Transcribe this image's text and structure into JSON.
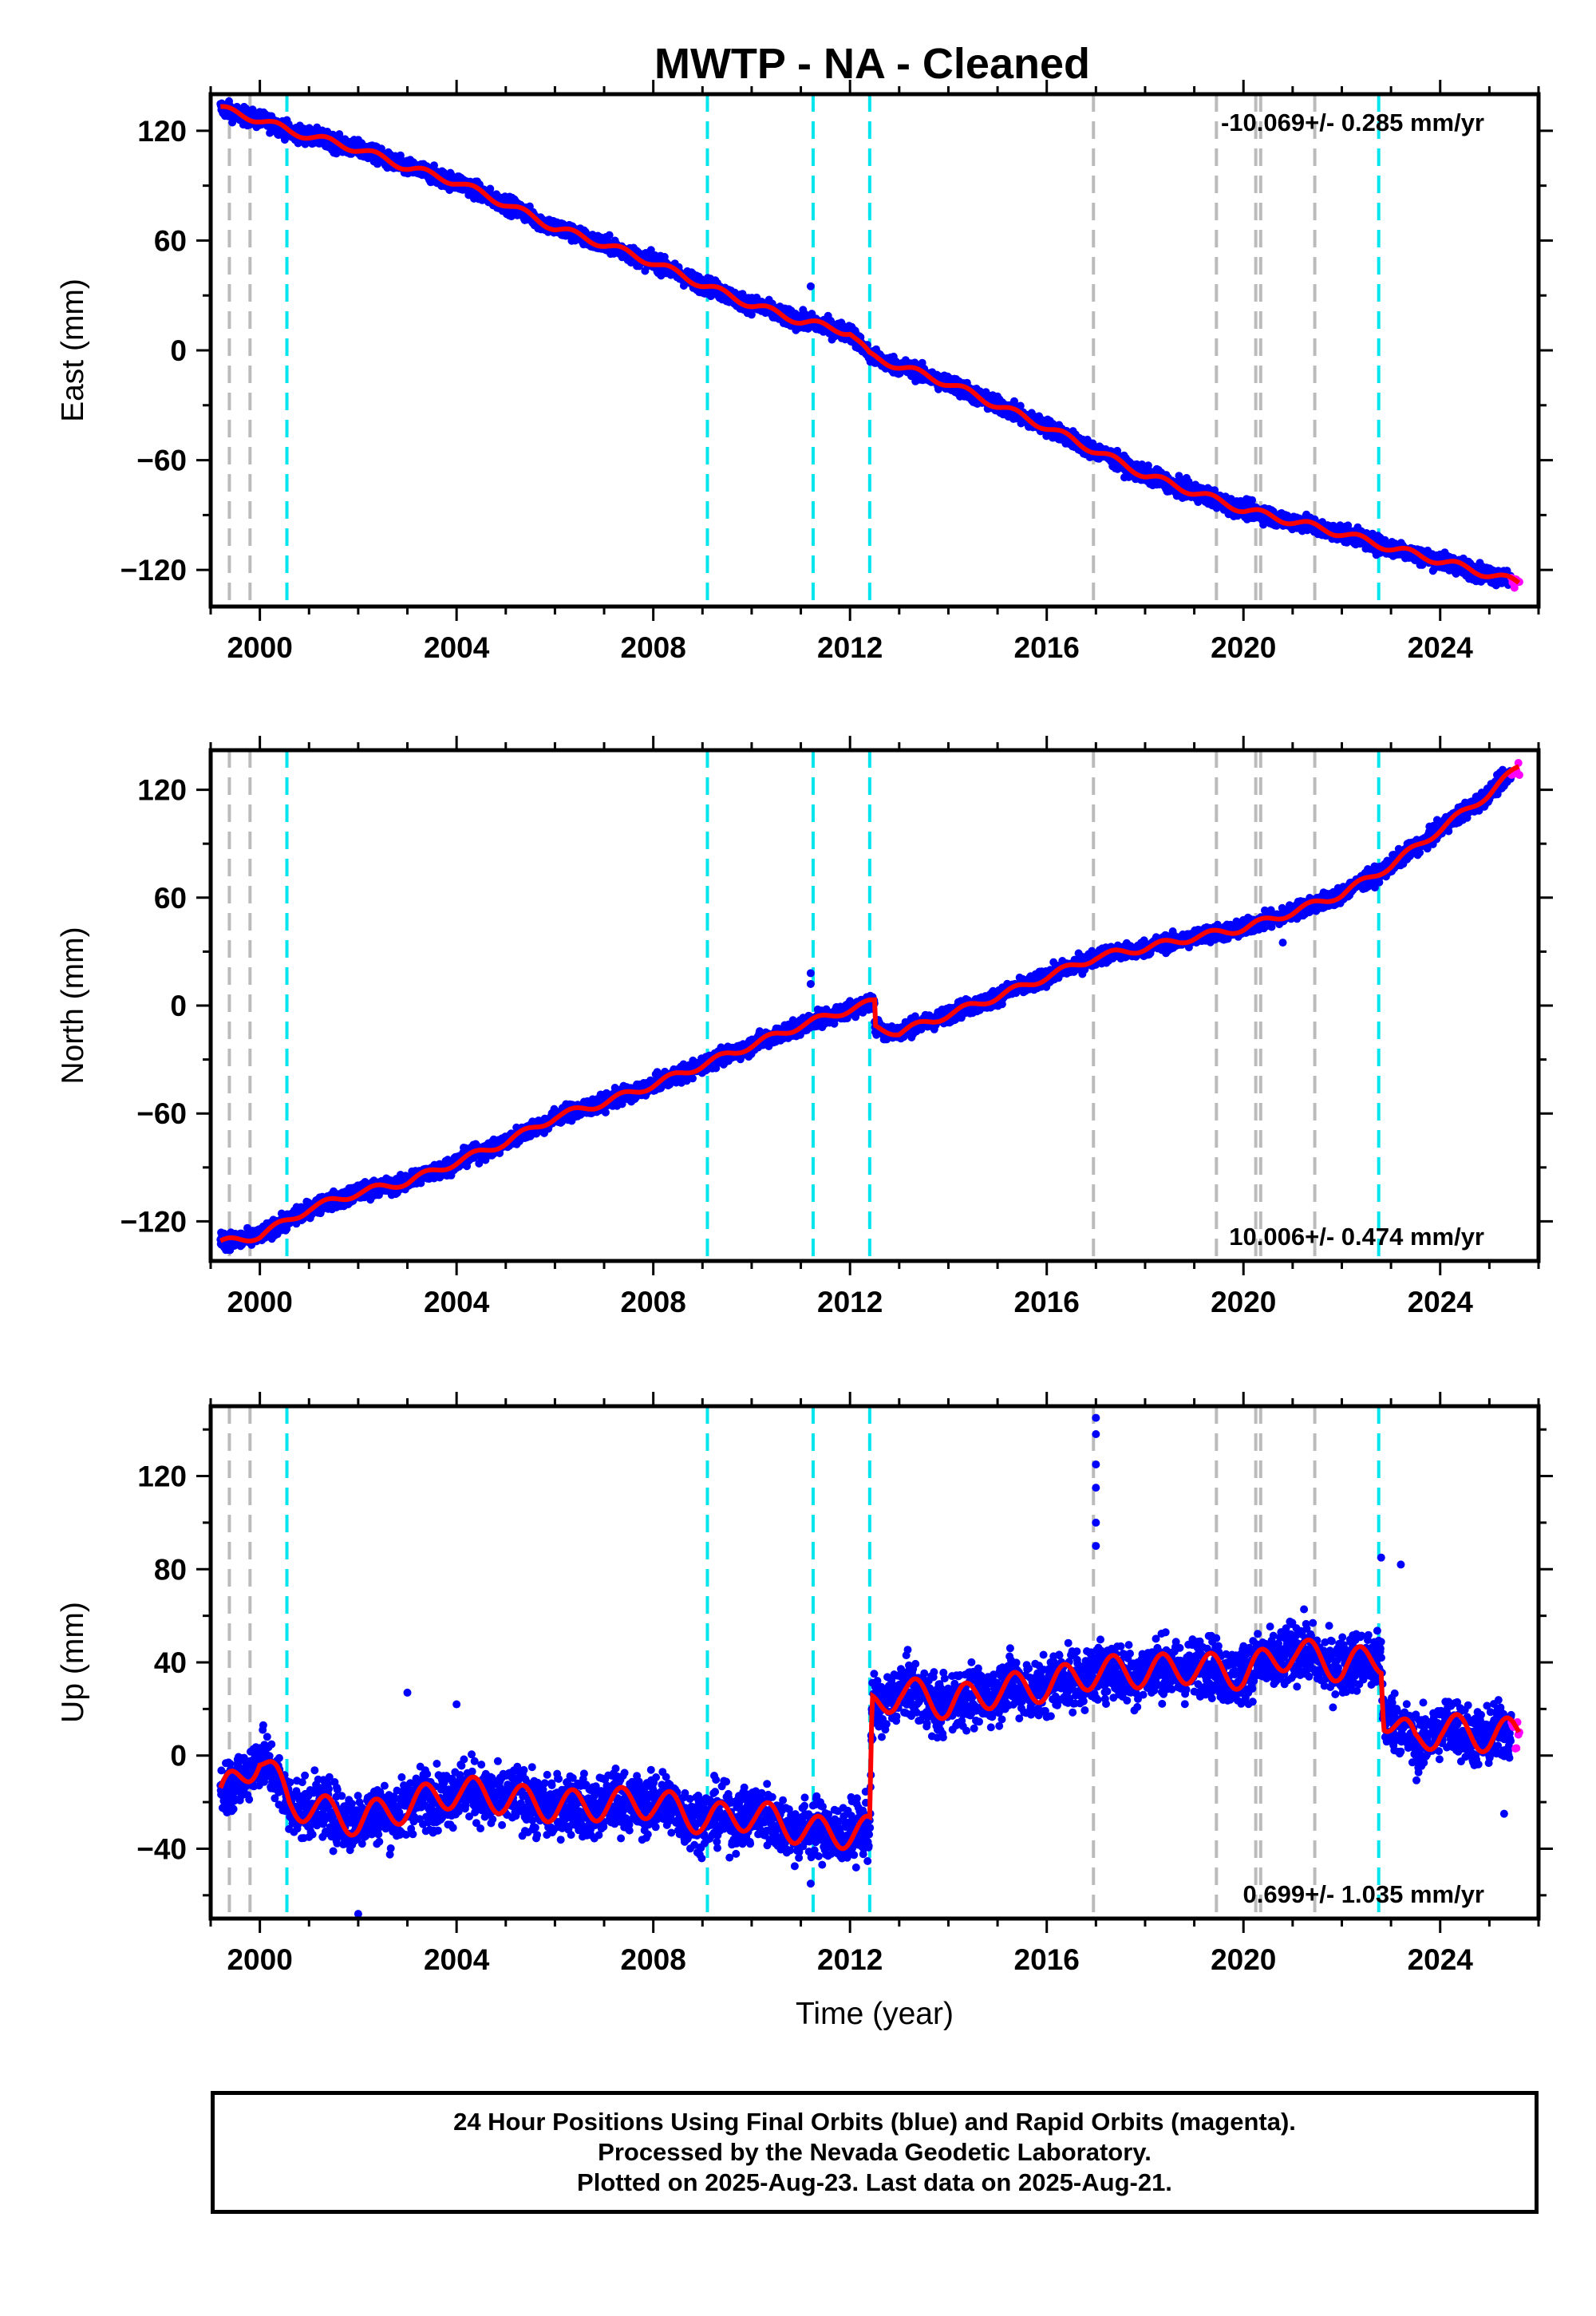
{
  "title": "MWTP  - NA - Cleaned",
  "caption": {
    "line1": "24 Hour Positions Using Final Orbits (blue) and Rapid Orbits (magenta).",
    "line2": "Processed by the Nevada Geodetic Laboratory.",
    "line3": "Plotted on 2025-Aug-23. Last data on 2025-Aug-21."
  },
  "colors": {
    "final_orbits": "#0000ff",
    "rapid_orbits": "#ff00ff",
    "model": "#ff0000",
    "equipment_change": "#bbbbbb",
    "earthquake": "#00e5ee"
  },
  "chart_data": [
    {
      "type": "scatter",
      "ylabel": "East (mm)",
      "xlabel": "",
      "xlim": [
        1999.0,
        2026.0
      ],
      "ylim": [
        -140,
        140
      ],
      "xticks": [
        2000,
        2004,
        2008,
        2012,
        2016,
        2020,
        2024
      ],
      "yticks": [
        120,
        60,
        0,
        -60,
        -120
      ],
      "rate_label": "-10.069+/- 0.285 mm/yr",
      "rate_position": "top-right",
      "trend": {
        "start": [
          1999.2,
          130
        ],
        "end": [
          2025.6,
          -127
        ]
      },
      "model_points": [
        [
          1999.2,
          132
        ],
        [
          2000.0,
          126
        ],
        [
          2000.6,
          120
        ],
        [
          2002.0,
          110
        ],
        [
          2003.0,
          100
        ],
        [
          2004.0,
          92
        ],
        [
          2005.0,
          80
        ],
        [
          2006.0,
          67
        ],
        [
          2007.0,
          58
        ],
        [
          2008.0,
          48
        ],
        [
          2009.0,
          36
        ],
        [
          2010.0,
          25
        ],
        [
          2011.0,
          16
        ],
        [
          2012.0,
          10
        ],
        [
          2012.4,
          -3
        ],
        [
          2014.0,
          -18
        ],
        [
          2016.0,
          -42
        ],
        [
          2017.0,
          -55
        ],
        [
          2018.0,
          -68
        ],
        [
          2020.0,
          -87
        ],
        [
          2022.0,
          -100
        ],
        [
          2023.0,
          -108
        ],
        [
          2024.0,
          -115
        ],
        [
          2025.6,
          -127
        ]
      ],
      "outliers": [
        [
          2011.2,
          35
        ]
      ]
    },
    {
      "type": "scatter",
      "ylabel": "North (mm)",
      "xlabel": "",
      "xlim": [
        1999.0,
        2026.0
      ],
      "ylim": [
        -142,
        142
      ],
      "xticks": [
        2000,
        2004,
        2008,
        2012,
        2016,
        2020,
        2024
      ],
      "yticks": [
        120,
        60,
        0,
        -60,
        -120
      ],
      "rate_label": "10.006+/- 0.474 mm/yr",
      "rate_position": "bottom-right",
      "trend": {
        "start": [
          1999.2,
          -133
        ],
        "end": [
          2025.6,
          135
        ]
      },
      "model_points": [
        [
          1999.2,
          -132
        ],
        [
          2000.0,
          -128
        ],
        [
          2001.0,
          -113
        ],
        [
          2002.0,
          -104
        ],
        [
          2003.0,
          -98
        ],
        [
          2004.0,
          -87
        ],
        [
          2005.0,
          -76
        ],
        [
          2006.0,
          -62
        ],
        [
          2007.0,
          -54
        ],
        [
          2008.0,
          -44
        ],
        [
          2009.0,
          -33
        ],
        [
          2010.0,
          -22
        ],
        [
          2011.0,
          -11
        ],
        [
          2012.0,
          -2
        ],
        [
          2012.5,
          2
        ],
        [
          2012.5,
          -12
        ],
        [
          2013.0,
          -15
        ],
        [
          2014.0,
          -5
        ],
        [
          2015.0,
          5
        ],
        [
          2016.0,
          16
        ],
        [
          2017.0,
          27
        ],
        [
          2018.0,
          32
        ],
        [
          2019.0,
          38
        ],
        [
          2020.0,
          43
        ],
        [
          2021.0,
          52
        ],
        [
          2022.0,
          62
        ],
        [
          2023.0,
          78
        ],
        [
          2024.0,
          98
        ],
        [
          2025.0,
          118
        ],
        [
          2025.6,
          133
        ]
      ],
      "outliers": [
        [
          2011.2,
          18
        ],
        [
          2011.2,
          12
        ],
        [
          2020.8,
          35
        ]
      ]
    },
    {
      "type": "scatter",
      "ylabel": "Up (mm)",
      "xlabel": "Time (year)",
      "xlim": [
        1999.0,
        2026.0
      ],
      "ylim": [
        -70,
        150
      ],
      "xticks": [
        2000,
        2004,
        2008,
        2012,
        2016,
        2020,
        2024
      ],
      "yticks": [
        120,
        80,
        40,
        0,
        -40
      ],
      "rate_label": "0.699+/- 1.035 mm/yr",
      "rate_position": "bottom-right",
      "model_points": [
        [
          1999.2,
          -18
        ],
        [
          2000.0,
          0
        ],
        [
          2000.6,
          -20
        ],
        [
          2002.0,
          -28
        ],
        [
          2004.0,
          -15
        ],
        [
          2006.0,
          -22
        ],
        [
          2008.0,
          -20
        ],
        [
          2009.1,
          -28
        ],
        [
          2010.0,
          -25
        ],
        [
          2011.2,
          -33
        ],
        [
          2012.4,
          -33
        ],
        [
          2012.45,
          20
        ],
        [
          2013.0,
          28
        ],
        [
          2014.0,
          22
        ],
        [
          2015.0,
          28
        ],
        [
          2016.0,
          30
        ],
        [
          2017.0,
          36
        ],
        [
          2018.0,
          36
        ],
        [
          2019.0,
          38
        ],
        [
          2020.0,
          35
        ],
        [
          2021.0,
          45
        ],
        [
          2022.0,
          38
        ],
        [
          2022.8,
          42
        ],
        [
          2022.85,
          18
        ],
        [
          2023.5,
          5
        ],
        [
          2024.0,
          12
        ],
        [
          2025.0,
          8
        ],
        [
          2025.6,
          10
        ]
      ],
      "outliers": [
        [
          2017.0,
          145
        ],
        [
          2017.0,
          138
        ],
        [
          2017.0,
          125
        ],
        [
          2017.0,
          115
        ],
        [
          2017.0,
          100
        ],
        [
          2017.0,
          90
        ],
        [
          2022.8,
          85
        ],
        [
          2023.2,
          82
        ],
        [
          2002.0,
          -68
        ],
        [
          2011.2,
          -55
        ],
        [
          2001.0,
          -35
        ],
        [
          2003.0,
          27
        ],
        [
          2004.0,
          22
        ],
        [
          2025.3,
          -25
        ]
      ]
    }
  ],
  "event_lines": {
    "equipment_change": [
      1999.38,
      1999.8,
      2016.95,
      2019.45,
      2020.25,
      2020.35,
      2021.45
    ],
    "earthquake": [
      2000.55,
      2009.1,
      2011.25,
      2012.4,
      2022.75
    ]
  }
}
